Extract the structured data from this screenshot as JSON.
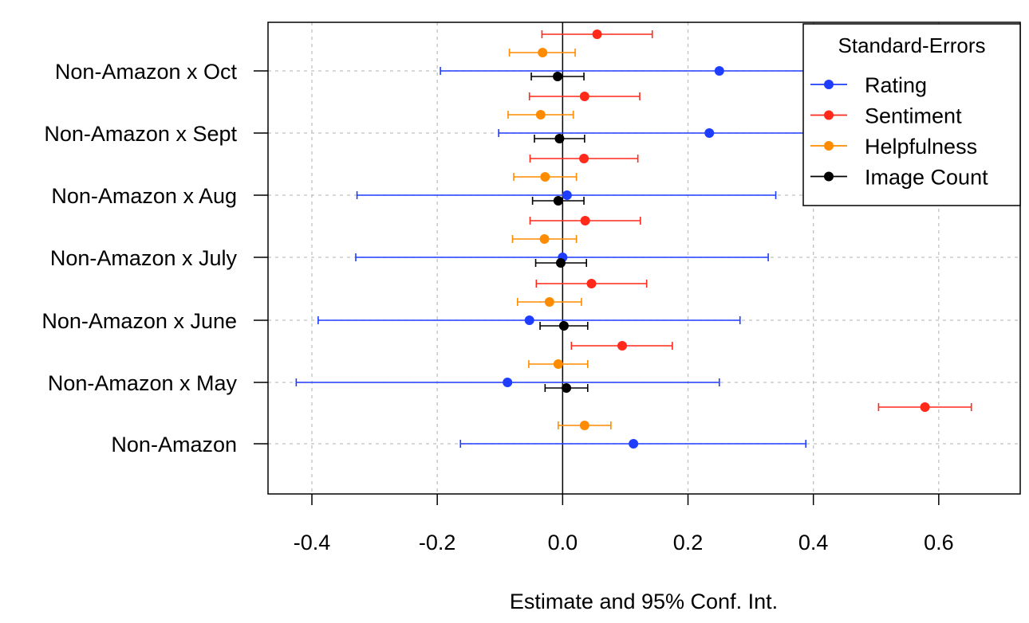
{
  "chart_data": {
    "type": "coefficient-plot",
    "xlabel": "Estimate and 95% Conf. Int.",
    "xlim": [
      -0.47,
      0.73
    ],
    "xticks": [
      -0.4,
      -0.2,
      0.0,
      0.2,
      0.4,
      0.6
    ],
    "xtick_labels": [
      "-0.4",
      "-0.2",
      "0.0",
      "0.2",
      "0.4",
      "0.6"
    ],
    "categories": [
      "Non-Amazon x Oct",
      "Non-Amazon x Sept",
      "Non-Amazon x Aug",
      "Non-Amazon x July",
      "Non-Amazon x June",
      "Non-Amazon x May",
      "Non-Amazon"
    ],
    "grid": true,
    "zero_line": true,
    "legend": {
      "title": "Standard-Errors",
      "placement": "top-right"
    },
    "series": [
      {
        "name": "Rating",
        "color": "#1f3dff",
        "estimates": [
          0.25,
          0.234,
          0.007,
          0.0,
          -0.053,
          -0.088,
          0.113
        ],
        "lower": [
          -0.195,
          -0.102,
          -0.328,
          -0.33,
          -0.39,
          -0.425,
          -0.163
        ],
        "upper": [
          0.695,
          0.57,
          0.34,
          0.328,
          0.283,
          0.25,
          0.388
        ]
      },
      {
        "name": "Sentiment",
        "color": "#ff2a1a",
        "estimates": [
          0.055,
          0.035,
          0.034,
          0.036,
          0.046,
          0.095,
          0.578
        ],
        "lower": [
          -0.033,
          -0.053,
          -0.052,
          -0.052,
          -0.042,
          0.014,
          0.504
        ],
        "upper": [
          0.143,
          0.123,
          0.12,
          0.124,
          0.134,
          0.175,
          0.652
        ]
      },
      {
        "name": "Helpfulness",
        "color": "#ff8c00",
        "estimates": [
          -0.032,
          -0.035,
          -0.028,
          -0.029,
          -0.021,
          -0.007,
          0.035
        ],
        "lower": [
          -0.085,
          -0.087,
          -0.078,
          -0.08,
          -0.072,
          -0.054,
          -0.007
        ],
        "upper": [
          0.02,
          0.017,
          0.022,
          0.022,
          0.03,
          0.04,
          0.077
        ]
      },
      {
        "name": "Image Count",
        "color": "#000000",
        "estimates": [
          -0.008,
          -0.005,
          -0.007,
          -0.003,
          0.002,
          0.006,
          null
        ],
        "lower": [
          -0.05,
          -0.045,
          -0.048,
          -0.043,
          -0.036,
          -0.028,
          null
        ],
        "upper": [
          0.034,
          0.035,
          0.034,
          0.038,
          0.04,
          0.04,
          null
        ]
      }
    ]
  }
}
